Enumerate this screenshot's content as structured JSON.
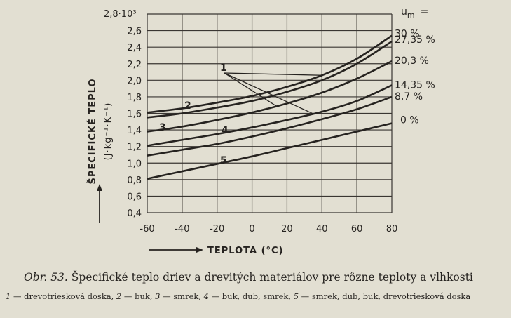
{
  "chart_data": {
    "type": "line",
    "ylabel_main": "ŠPECIFICKÉ TEPLO",
    "ylabel_unit": "(J·kg⁻¹·K⁻¹)",
    "y_multiplier": "2,8·10³",
    "xlabel": "TEPLOTA (°C)",
    "xlim": [
      -60,
      80
    ],
    "ylim": [
      0.4,
      2.8
    ],
    "x_ticks": [
      "-60",
      "-40",
      "-20",
      "0",
      "20",
      "40",
      "60",
      "80"
    ],
    "y_ticks": [
      "2,6",
      "2,4",
      "2,2",
      "2,0",
      "1,8",
      "1,6",
      "1,4",
      "1,2",
      "1,0",
      "0,8",
      "0,6",
      "0,4"
    ],
    "legend_title": "u",
    "legend_title_sub": "m",
    "legend_title_suffix": "=",
    "series": [
      {
        "name": "30 %",
        "x": [
          -60,
          -40,
          -20,
          0,
          20,
          40,
          60,
          80
        ],
        "y": [
          1.61,
          1.66,
          1.73,
          1.81,
          1.92,
          2.06,
          2.26,
          2.54
        ]
      },
      {
        "name": "27,35 %",
        "x": [
          -60,
          -40,
          -20,
          0,
          20,
          40,
          60,
          80
        ],
        "y": [
          1.55,
          1.6,
          1.67,
          1.75,
          1.86,
          2.0,
          2.2,
          2.47
        ]
      },
      {
        "name": "20,3 %",
        "x": [
          -60,
          -40,
          -20,
          0,
          20,
          40,
          60,
          80
        ],
        "y": [
          1.38,
          1.44,
          1.52,
          1.61,
          1.72,
          1.85,
          2.02,
          2.23
        ]
      },
      {
        "name": "14,35 %",
        "x": [
          -60,
          -40,
          -20,
          0,
          20,
          40,
          60,
          80
        ],
        "y": [
          1.21,
          1.28,
          1.35,
          1.43,
          1.52,
          1.62,
          1.75,
          1.94
        ]
      },
      {
        "name": "8,7 %",
        "x": [
          -60,
          -40,
          -20,
          0,
          20,
          40,
          60,
          80
        ],
        "y": [
          1.09,
          1.16,
          1.23,
          1.32,
          1.42,
          1.53,
          1.65,
          1.8
        ]
      },
      {
        "name": "0 %",
        "x": [
          -60,
          -40,
          -20,
          0,
          20,
          40,
          60,
          80
        ],
        "y": [
          0.81,
          0.9,
          0.99,
          1.08,
          1.18,
          1.28,
          1.38,
          1.48
        ]
      }
    ],
    "annotations": [
      "1",
      "2",
      "3",
      "4",
      "5"
    ],
    "grid": true
  },
  "caption": {
    "label": "Obr. 53.",
    "text": "Špecifické teplo driev a drevitých materiálov pre rôzne teploty a vlhkosti"
  },
  "legend_text": [
    {
      "num": "1",
      "text": " — drevotriesková doska, "
    },
    {
      "num": "2",
      "text": " — buk, "
    },
    {
      "num": "3",
      "text": " — smrek, "
    },
    {
      "num": "4",
      "text": " — buk, dub, smrek, "
    },
    {
      "num": "5",
      "text": " — smrek, dub, buk, drevotriesková doska"
    }
  ],
  "colors": {
    "ink": "#262320",
    "paper": "#e2dfd2",
    "grid": "#3a3632"
  }
}
